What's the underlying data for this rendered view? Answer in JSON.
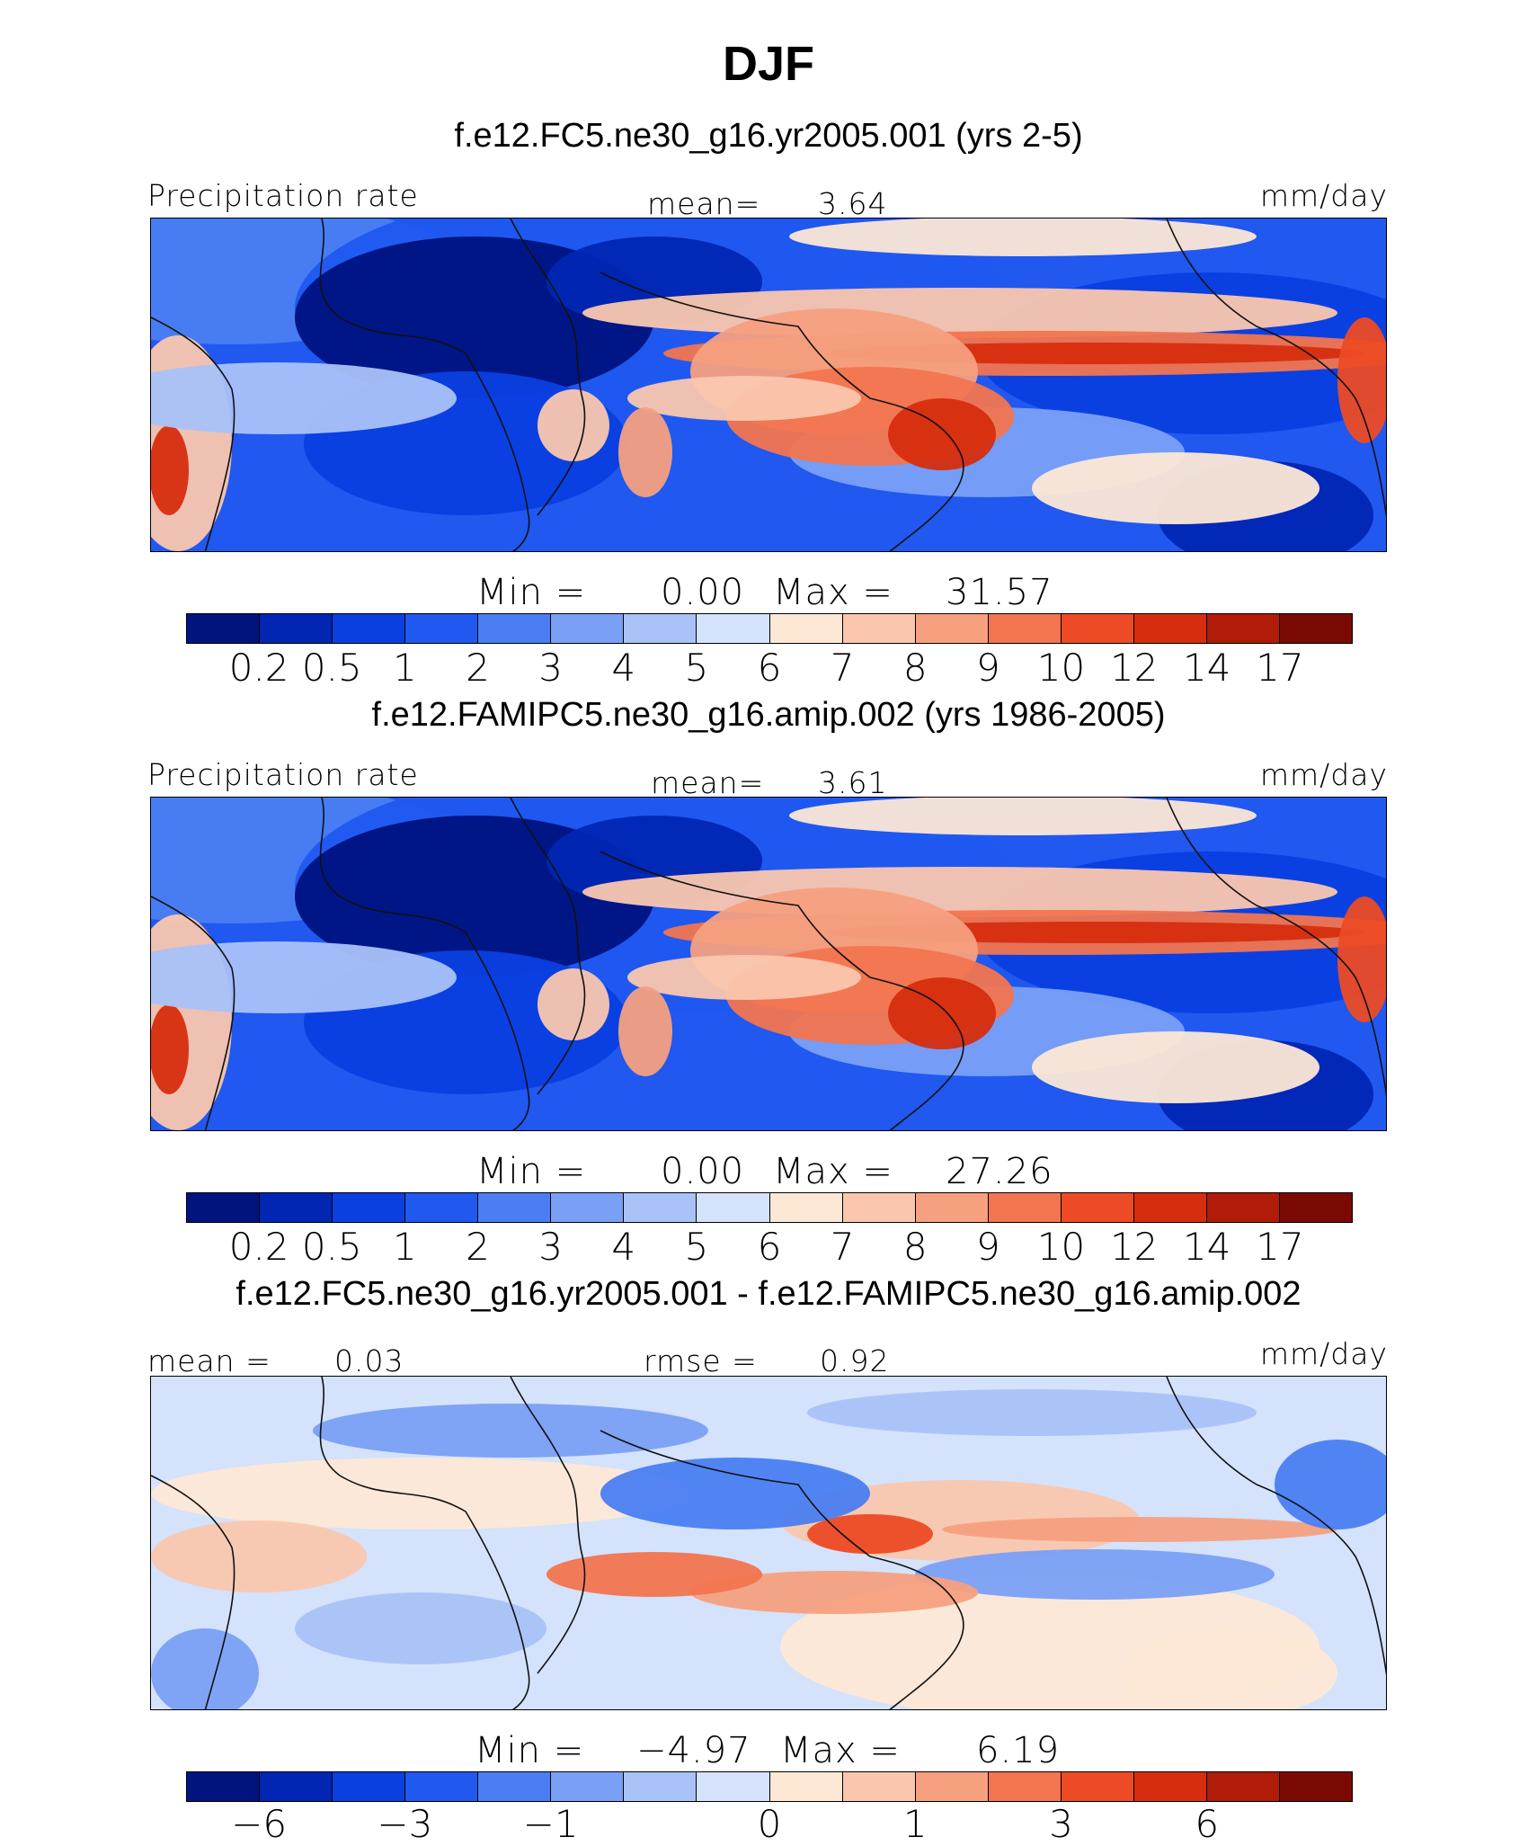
{
  "title": "DJF",
  "panels": [
    {
      "subtitle": "f.e12.FC5.ne30_g16.yr2005.001 (yrs 2-5)",
      "left_label": "Precipitation rate",
      "center_label": "mean=",
      "center_value": "3.64",
      "right_label": "mm/day",
      "min_label": "Min  =",
      "min_value": "0.00",
      "max_label": "Max  =",
      "max_value": "31.57",
      "colorbar": [
        "#00137f",
        "#0026b3",
        "#0a3fe0",
        "#2058f0",
        "#4a7ef2",
        "#7aa0f5",
        "#a9c2f8",
        "#d4e2fb",
        "#fde8d6",
        "#fac7ae",
        "#f6a07f",
        "#f2754f",
        "#ec4b25",
        "#d62d0e",
        "#b01c07",
        "#7a0a03"
      ],
      "ticks": [
        "0.2",
        "0.5",
        "1",
        "2",
        "3",
        "4",
        "5",
        "6",
        "7",
        "8",
        "9",
        "10",
        "12",
        "14",
        "17"
      ],
      "palette": "abs"
    },
    {
      "subtitle": "f.e12.FAMIPC5.ne30_g16.amip.002 (yrs 1986-2005)",
      "left_label": "Precipitation rate",
      "center_label": "mean=",
      "center_value": "3.61",
      "right_label": "mm/day",
      "min_label": "Min  =",
      "min_value": "0.00",
      "max_label": "Max  =",
      "max_value": "27.26",
      "colorbar": [
        "#00137f",
        "#0026b3",
        "#0a3fe0",
        "#2058f0",
        "#4a7ef2",
        "#7aa0f5",
        "#a9c2f8",
        "#d4e2fb",
        "#fde8d6",
        "#fac7ae",
        "#f6a07f",
        "#f2754f",
        "#ec4b25",
        "#d62d0e",
        "#b01c07",
        "#7a0a03"
      ],
      "ticks": [
        "0.2",
        "0.5",
        "1",
        "2",
        "3",
        "4",
        "5",
        "6",
        "7",
        "8",
        "9",
        "10",
        "12",
        "14",
        "17"
      ],
      "palette": "abs"
    },
    {
      "subtitle": "f.e12.FC5.ne30_g16.yr2005.001 - f.e12.FAMIPC5.ne30_g16.amip.002",
      "left_label": "mean =",
      "left_value": "0.03",
      "center_label": "rmse =",
      "center_value": "0.92",
      "right_label": "mm/day",
      "min_label": "Min  =",
      "min_value": "−4.97",
      "max_label": "Max  =",
      "max_value": "6.19",
      "colorbar": [
        "#00137f",
        "#0026b3",
        "#0a3fe0",
        "#2058f0",
        "#4a7ef2",
        "#7aa0f5",
        "#a9c2f8",
        "#d4e2fb",
        "#fde8d6",
        "#fac7ae",
        "#f6a07f",
        "#f2754f",
        "#ec4b25",
        "#d62d0e",
        "#b01c07",
        "#7a0a03"
      ],
      "ticks": [
        "−6",
        "−3",
        "−1",
        "0",
        "1",
        "3",
        "6"
      ],
      "palette": "diff"
    }
  ]
}
